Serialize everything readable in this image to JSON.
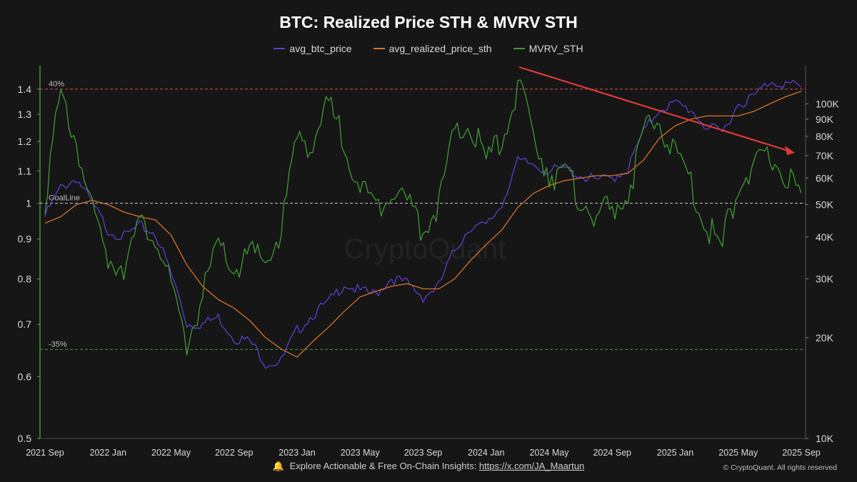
{
  "header": {
    "title": "BTC: Realized Price STH & MVRV STH"
  },
  "footer": {
    "bell_icon": "bell-icon",
    "text": "Explore Actionable & Free On-Chain Insights:",
    "link": "https://x.com/JA_Maartun",
    "copyright": "© CryptoQuant. All rights reserved"
  },
  "watermark": "CryptoQuant",
  "chart_data": {
    "type": "line",
    "title": "BTC: Realized Price STH & MVRV STH",
    "legend_position": "top-center",
    "grid": false,
    "x_ticks": [
      "2021 Sep",
      "2022 Jan",
      "2022 May",
      "2022 Sep",
      "2023 Jan",
      "2023 May",
      "2023 Sep",
      "2024 Jan",
      "2024 May",
      "2024 Sep",
      "2025 Jan",
      "2025 May",
      "2025 Sep"
    ],
    "y_left": {
      "scale": "log",
      "lim": [
        0.5,
        1.5
      ],
      "ticks": [
        "1.4",
        "1.3",
        "1.2",
        "1.1",
        "1",
        "0.9",
        "0.8",
        "0.7",
        "0.6",
        "0.5"
      ]
    },
    "y_right": {
      "scale": "log",
      "lim": [
        10000,
        130000
      ],
      "ticks": [
        "100K",
        "90K",
        "80K",
        "70K",
        "60K",
        "50K",
        "40K",
        "30K",
        "20K",
        "10K"
      ]
    },
    "reference_lines": [
      {
        "label": "40%",
        "value": 1.4,
        "color": "#d84c4c"
      },
      {
        "label": "GoalLine",
        "value": 1.0,
        "color": "#cccccc"
      },
      {
        "label": "-35%",
        "value": 0.65,
        "color": "#4c9a3c"
      }
    ],
    "annotation": {
      "type": "arrow",
      "color": "#e03a3a",
      "from": [
        "2024 Mar",
        1.55
      ],
      "to": [
        "2025 Sep",
        1.16
      ]
    },
    "series": [
      {
        "name": "avg_btc_price",
        "color": "#5b3fd0",
        "axis": "right",
        "x": [
          "2021-09",
          "2021-10",
          "2021-11",
          "2021-12",
          "2022-01",
          "2022-02",
          "2022-03",
          "2022-04",
          "2022-05",
          "2022-06",
          "2022-07",
          "2022-08",
          "2022-09",
          "2022-10",
          "2022-11",
          "2022-12",
          "2023-01",
          "2023-02",
          "2023-03",
          "2023-04",
          "2023-05",
          "2023-06",
          "2023-07",
          "2023-08",
          "2023-09",
          "2023-10",
          "2023-11",
          "2023-12",
          "2024-01",
          "2024-02",
          "2024-03",
          "2024-04",
          "2024-05",
          "2024-06",
          "2024-07",
          "2024-08",
          "2024-09",
          "2024-10",
          "2024-11",
          "2024-12",
          "2025-01",
          "2025-02",
          "2025-03",
          "2025-04",
          "2025-05",
          "2025-06",
          "2025-07",
          "2025-08",
          "2025-09"
        ],
        "y": [
          46000,
          56000,
          60000,
          50000,
          42000,
          40000,
          43000,
          41000,
          31000,
          22000,
          22000,
          23000,
          20000,
          19500,
          16800,
          17000,
          21000,
          23500,
          25500,
          29000,
          27500,
          27000,
          30200,
          29000,
          26500,
          28500,
          36500,
          43000,
          43000,
          50000,
          67000,
          66000,
          63000,
          64000,
          61000,
          59000,
          60000,
          64000,
          82000,
          97000,
          100000,
          96000,
          85000,
          82000,
          100000,
          105000,
          117000,
          115000,
          112000
        ]
      },
      {
        "name": "avg_realized_price_sth",
        "color": "#d9722b",
        "axis": "right",
        "x": [
          "2021-09",
          "2021-10",
          "2021-11",
          "2021-12",
          "2022-01",
          "2022-02",
          "2022-03",
          "2022-04",
          "2022-05",
          "2022-06",
          "2022-07",
          "2022-08",
          "2022-09",
          "2022-10",
          "2022-11",
          "2022-12",
          "2023-01",
          "2023-02",
          "2023-03",
          "2023-04",
          "2023-05",
          "2023-06",
          "2023-07",
          "2023-08",
          "2023-09",
          "2023-10",
          "2023-11",
          "2023-12",
          "2024-01",
          "2024-02",
          "2024-03",
          "2024-04",
          "2024-05",
          "2024-06",
          "2024-07",
          "2024-08",
          "2024-09",
          "2024-10",
          "2024-11",
          "2024-12",
          "2025-01",
          "2025-02",
          "2025-03",
          "2025-04",
          "2025-05",
          "2025-06",
          "2025-07",
          "2025-08",
          "2025-09"
        ],
        "y": [
          44000,
          46000,
          50000,
          51500,
          50000,
          47500,
          46000,
          45000,
          40500,
          33000,
          28500,
          26000,
          24500,
          22500,
          20000,
          18500,
          17500,
          19500,
          21500,
          24000,
          26500,
          27500,
          28500,
          29000,
          28000,
          28000,
          30000,
          34000,
          38000,
          42000,
          49000,
          54000,
          57000,
          59000,
          60000,
          61000,
          61000,
          62000,
          68000,
          79000,
          86000,
          90000,
          92000,
          92000,
          92000,
          95000,
          100000,
          105000,
          109000
        ]
      },
      {
        "name": "MVRV_STH",
        "color": "#3f9a32",
        "axis": "left",
        "x": [
          "2021-09",
          "2021-10",
          "2021-11",
          "2021-12",
          "2022-01",
          "2022-02",
          "2022-03",
          "2022-04",
          "2022-05",
          "2022-06",
          "2022-07",
          "2022-08",
          "2022-09",
          "2022-10",
          "2022-11",
          "2022-12",
          "2023-01",
          "2023-02",
          "2023-03",
          "2023-04",
          "2023-05",
          "2023-06",
          "2023-07",
          "2023-08",
          "2023-09",
          "2023-10",
          "2023-11",
          "2023-12",
          "2024-01",
          "2024-02",
          "2024-03",
          "2024-04",
          "2024-05",
          "2024-06",
          "2024-07",
          "2024-08",
          "2024-09",
          "2024-10",
          "2024-11",
          "2024-12",
          "2025-01",
          "2025-02",
          "2025-03",
          "2025-04",
          "2025-05",
          "2025-06",
          "2025-07",
          "2025-08",
          "2025-09"
        ],
        "y": [
          1.02,
          1.36,
          1.2,
          0.97,
          0.85,
          0.84,
          0.93,
          0.92,
          0.77,
          0.66,
          0.76,
          0.88,
          0.82,
          0.86,
          0.84,
          0.92,
          1.21,
          1.2,
          1.33,
          1.2,
          1.05,
          0.98,
          1.06,
          1.0,
          0.93,
          1.0,
          1.22,
          1.26,
          1.13,
          1.2,
          1.41,
          1.22,
          1.1,
          1.08,
          1.02,
          0.96,
          0.98,
          1.03,
          1.22,
          1.28,
          1.15,
          1.06,
          0.93,
          0.88,
          1.07,
          1.1,
          1.15,
          1.09,
          1.03
        ]
      }
    ]
  }
}
